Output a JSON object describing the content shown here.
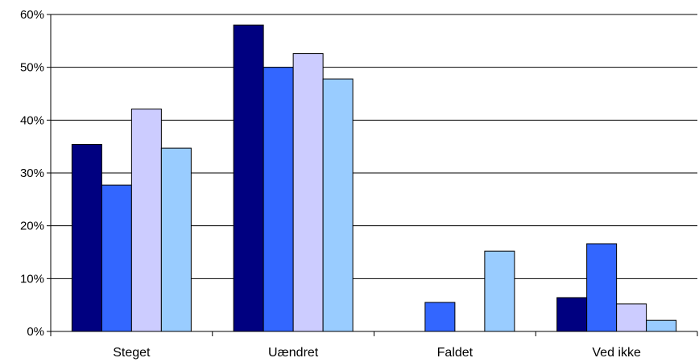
{
  "chart_data": {
    "type": "bar",
    "title": "",
    "xlabel": "",
    "ylabel": "",
    "categories": [
      "Steget",
      "Uændret",
      "Faldet",
      "Ved ikke"
    ],
    "series": [
      {
        "color": "#000080",
        "values": [
          35.4,
          58.0,
          0.0,
          6.4
        ]
      },
      {
        "color": "#3366FF",
        "values": [
          27.7,
          50.0,
          5.5,
          16.6
        ]
      },
      {
        "color": "#CCCCFF",
        "values": [
          42.1,
          52.6,
          0.0,
          5.2
        ]
      },
      {
        "color": "#99CCFF",
        "values": [
          34.7,
          47.8,
          15.2,
          2.1
        ]
      }
    ],
    "ylim": [
      0,
      60
    ],
    "yticks": [
      0,
      10,
      20,
      30,
      40,
      50,
      60
    ],
    "ytick_labels": [
      "0%",
      "10%",
      "20%",
      "30%",
      "40%",
      "50%",
      "60%"
    ],
    "grid": true,
    "legend": "none"
  }
}
